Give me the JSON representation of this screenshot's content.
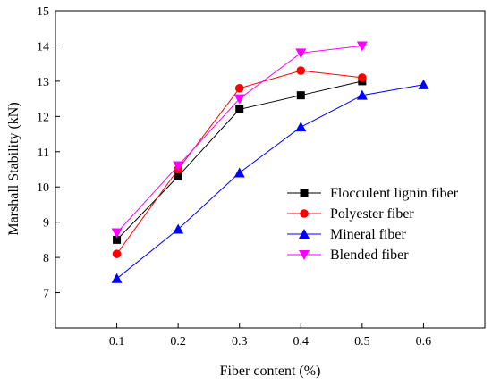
{
  "chart_data": {
    "type": "line",
    "title": "",
    "xlabel": "Fiber content (%)",
    "ylabel": "Marshall Stability (kN)",
    "xlim": [
      0.0,
      0.7
    ],
    "ylim": [
      6.0,
      15.0
    ],
    "xticks": [
      "0.1",
      "0.2",
      "0.3",
      "0.4",
      "0.5",
      "0.6"
    ],
    "yticks": [
      "7",
      "8",
      "9",
      "10",
      "11",
      "12",
      "13",
      "14",
      "15"
    ],
    "grid": false,
    "legend_position": "right",
    "series": [
      {
        "name": "Flocculent lignin fiber",
        "color": "#000000",
        "marker": "square",
        "x": [
          0.1,
          0.2,
          0.3,
          0.4,
          0.5
        ],
        "y": [
          8.5,
          10.3,
          12.2,
          12.6,
          13.0
        ]
      },
      {
        "name": "Polyester fiber",
        "color": "#ff0000",
        "marker": "circle",
        "x": [
          0.1,
          0.2,
          0.3,
          0.4,
          0.5
        ],
        "y": [
          8.1,
          10.5,
          12.8,
          13.3,
          13.1
        ]
      },
      {
        "name": "Mineral fiber",
        "color": "#0000ff",
        "marker": "triangle-up",
        "x": [
          0.1,
          0.2,
          0.3,
          0.4,
          0.5,
          0.6
        ],
        "y": [
          7.4,
          8.8,
          10.4,
          11.7,
          12.6,
          12.9
        ]
      },
      {
        "name": "Blended fiber",
        "color": "#ff00ff",
        "marker": "triangle-down",
        "x": [
          0.1,
          0.2,
          0.3,
          0.4,
          0.5
        ],
        "y": [
          8.7,
          10.6,
          12.5,
          13.8,
          14.0
        ]
      }
    ]
  }
}
